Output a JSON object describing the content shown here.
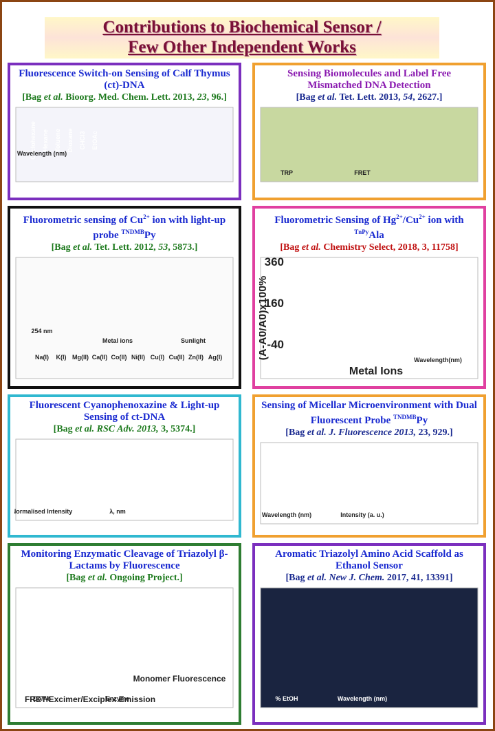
{
  "header": {
    "title_line1": "Contributions to Biochemical Sensor /",
    "title_line2": "Few Other Independent Works"
  },
  "panels": [
    {
      "title": [
        "Fluorescence Switch-on Sensing of Calf Thymus (ct)-DNA"
      ],
      "citation": [
        "[Bag ",
        "et al.",
        " Bioorg. Med. Chem. Lett. 2013, ",
        "23",
        ", 96.]"
      ],
      "figure_labels": [
        "Cyclohexane",
        "Hexane",
        "Toluene",
        "Dioxane",
        "CHCl3",
        "EtOAc",
        "Wavelength (nm)"
      ]
    },
    {
      "title": [
        "Sensing Biomolecules and Label Free Mismatched DNA Detection"
      ],
      "citation": [
        "[Bag ",
        "et al.",
        " Tet. Lett. 2013, ",
        "54",
        ", 2627.]"
      ],
      "figure_labels": [
        "TRP",
        "FRET"
      ]
    },
    {
      "title": [
        "Fluorometric sensing of Cu",
        "2+",
        " ion with light-up probe ",
        "TNDMB",
        "Py"
      ],
      "citation": [
        "[Bag ",
        "et al.",
        " Tet. Lett. 2012, ",
        "53",
        ", 5873.]"
      ],
      "figure_labels": [
        "Na(I)",
        "K(I)",
        "Mg(II)",
        "Ca(II)",
        "Co(II)",
        "Ni(II)",
        "Cu(I)",
        "Cu(II)",
        "Zn(II)",
        "Ag(I)",
        "Metal ions",
        "Sunlight",
        "254 nm"
      ]
    },
    {
      "title": [
        "Fluorometric Sensing of Hg",
        "2+",
        "/Cu",
        "2+",
        " ion with ",
        "TnPy",
        "Ala"
      ],
      "citation": [
        "[Bag ",
        "et al.",
        " Chemistry Select, 2018, 3, 11758]"
      ],
      "figure_labels": [
        "360",
        "160",
        "-40",
        "Metal Ions",
        "(A-A0/A0)x100%",
        "Wavelength(nm)"
      ]
    },
    {
      "title": [
        "Fluorescent Cyanophenoxazine & Light-up Sensing of ct-DNA"
      ],
      "citation": [
        "[Bag ",
        "et al.",
        " RSC Adv.",
        " 2013, ",
        "3",
        ", 5374.]"
      ],
      "figure_labels": [
        "Normalised Intensity",
        "λ, nm"
      ]
    },
    {
      "title": [
        "Sensing of Micellar Microenvironment with Dual Fluorescent Probe ",
        "TNDMB",
        "Py"
      ],
      "citation": [
        "[Bag ",
        "et al.",
        "  J. Fluorescence",
        " 2013, ",
        "23",
        ", 929.]"
      ],
      "figure_labels": [
        "Wavelength (nm)",
        "Intensity (a. u.)"
      ]
    },
    {
      "title": [
        "Monitoring Enzymatic Cleavage of Triazolyl β-Lactams by Fluorescence"
      ],
      "citation": [
        "[Bag ",
        "et al.",
        " Ongoing Project.]"
      ],
      "figure_labels": [
        "Do/Ac",
        "Enzyme",
        "Monomer  Fluorescence",
        "FRET/Excimer/Exciplex  Emission"
      ]
    },
    {
      "title": [
        "Aromatic Triazolyl Amino Acid Scaffold as Ethanol Sensor"
      ],
      "citation": [
        "[Bag ",
        "et al.",
        " New J. Chem.",
        " 2017, 41, 13391]"
      ],
      "figure_labels": [
        "% EtOH",
        "Wavelength (nm)"
      ]
    }
  ]
}
